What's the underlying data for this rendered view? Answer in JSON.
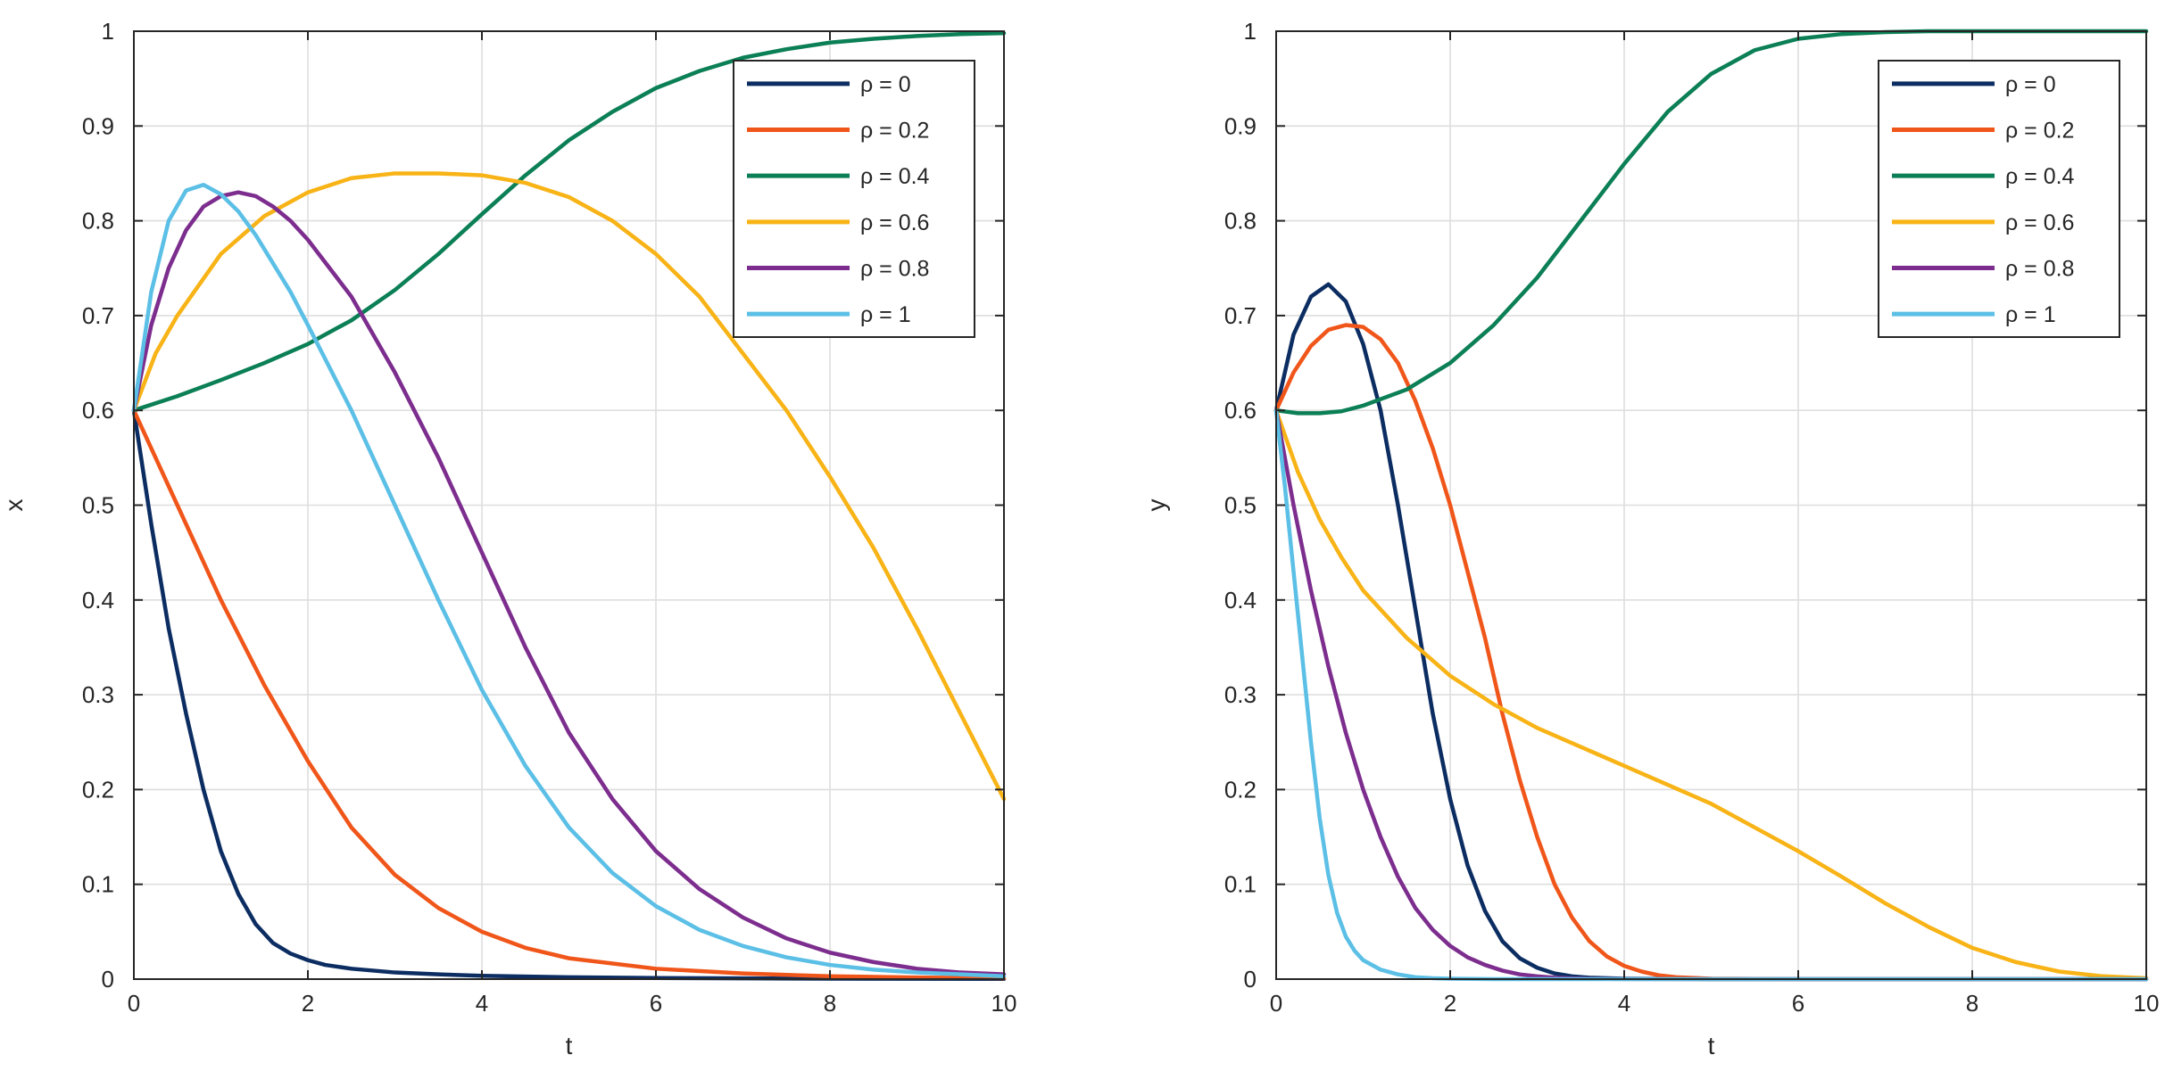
{
  "chart_data": [
    {
      "type": "line",
      "xlabel": "t",
      "ylabel": "x",
      "xlim": [
        0,
        10
      ],
      "ylim": [
        0,
        1
      ],
      "xticks": [
        "0",
        "2",
        "4",
        "6",
        "8",
        "10"
      ],
      "yticks": [
        "0",
        "0.1",
        "0.2",
        "0.3",
        "0.4",
        "0.5",
        "0.6",
        "0.7",
        "0.8",
        "0.9",
        "1"
      ],
      "grid": true,
      "legend_position": "top-right",
      "series": [
        {
          "name": "ρ = 0",
          "color": "#0c2d62",
          "x": [
            0,
            0.2,
            0.4,
            0.6,
            0.8,
            1.0,
            1.2,
            1.4,
            1.6,
            1.8,
            2.0,
            2.2,
            2.5,
            3,
            3.5,
            4,
            5,
            6,
            7,
            8,
            9,
            10
          ],
          "y": [
            0.6,
            0.48,
            0.37,
            0.28,
            0.2,
            0.135,
            0.09,
            0.058,
            0.038,
            0.027,
            0.02,
            0.015,
            0.011,
            0.007,
            0.005,
            0.0035,
            0.002,
            0.0012,
            0.0008,
            0.0005,
            0.0003,
            0.0002
          ]
        },
        {
          "name": "ρ = 0.2",
          "color": "#f0561a",
          "x": [
            0,
            0.5,
            1,
            1.5,
            2,
            2.5,
            3,
            3.5,
            4,
            4.5,
            5,
            6,
            7,
            8,
            9,
            10
          ],
          "y": [
            0.6,
            0.5,
            0.4,
            0.31,
            0.23,
            0.16,
            0.11,
            0.075,
            0.05,
            0.033,
            0.022,
            0.011,
            0.006,
            0.003,
            0.0018,
            0.001
          ]
        },
        {
          "name": "ρ = 0.4",
          "color": "#0b7f55",
          "x": [
            0,
            0.5,
            1,
            1.5,
            2,
            2.5,
            3,
            3.5,
            4,
            4.5,
            5,
            5.5,
            6,
            6.5,
            7,
            7.5,
            8,
            8.5,
            9,
            9.5,
            10
          ],
          "y": [
            0.6,
            0.615,
            0.632,
            0.65,
            0.67,
            0.695,
            0.727,
            0.765,
            0.807,
            0.848,
            0.885,
            0.915,
            0.94,
            0.958,
            0.972,
            0.981,
            0.988,
            0.992,
            0.995,
            0.997,
            0.998
          ]
        },
        {
          "name": "ρ = 0.6",
          "color": "#f8b316",
          "x": [
            0,
            0.25,
            0.5,
            1,
            1.5,
            2,
            2.5,
            3,
            3.5,
            4,
            4.5,
            5,
            5.5,
            6,
            6.5,
            7,
            7.5,
            8,
            8.5,
            9,
            9.5,
            10
          ],
          "y": [
            0.6,
            0.66,
            0.7,
            0.765,
            0.805,
            0.83,
            0.845,
            0.85,
            0.85,
            0.848,
            0.84,
            0.825,
            0.8,
            0.765,
            0.72,
            0.66,
            0.6,
            0.53,
            0.455,
            0.37,
            0.28,
            0.19
          ]
        },
        {
          "name": "ρ = 0.8",
          "color": "#7c2d8e",
          "x": [
            0,
            0.2,
            0.4,
            0.6,
            0.8,
            1.0,
            1.2,
            1.4,
            1.6,
            1.8,
            2.0,
            2.5,
            3,
            3.5,
            4,
            4.5,
            5,
            5.5,
            6,
            6.5,
            7,
            7.5,
            8,
            8.5,
            9,
            9.5,
            10
          ],
          "y": [
            0.6,
            0.69,
            0.75,
            0.79,
            0.815,
            0.826,
            0.83,
            0.826,
            0.815,
            0.8,
            0.78,
            0.72,
            0.64,
            0.55,
            0.45,
            0.35,
            0.26,
            0.19,
            0.135,
            0.095,
            0.065,
            0.043,
            0.028,
            0.018,
            0.011,
            0.007,
            0.005
          ]
        },
        {
          "name": "ρ = 1",
          "color": "#5bbfe6",
          "x": [
            0,
            0.2,
            0.4,
            0.6,
            0.8,
            1.0,
            1.2,
            1.4,
            1.6,
            1.8,
            2.0,
            2.5,
            3,
            3.5,
            4,
            4.5,
            5,
            5.5,
            6,
            6.5,
            7,
            7.5,
            8,
            8.5,
            9,
            9.5,
            10
          ],
          "y": [
            0.6,
            0.725,
            0.8,
            0.832,
            0.838,
            0.828,
            0.81,
            0.785,
            0.755,
            0.725,
            0.69,
            0.6,
            0.5,
            0.4,
            0.305,
            0.225,
            0.16,
            0.112,
            0.077,
            0.052,
            0.035,
            0.023,
            0.015,
            0.01,
            0.007,
            0.005,
            0.003
          ]
        }
      ]
    },
    {
      "type": "line",
      "xlabel": "t",
      "ylabel": "y",
      "xlim": [
        0,
        10
      ],
      "ylim": [
        0,
        1
      ],
      "xticks": [
        "0",
        "2",
        "4",
        "6",
        "8",
        "10"
      ],
      "yticks": [
        "0",
        "0.1",
        "0.2",
        "0.3",
        "0.4",
        "0.5",
        "0.6",
        "0.7",
        "0.8",
        "0.9",
        "1"
      ],
      "grid": true,
      "legend_position": "top-right",
      "series": [
        {
          "name": "ρ = 0",
          "color": "#0c2d62",
          "x": [
            0,
            0.2,
            0.4,
            0.6,
            0.8,
            1.0,
            1.2,
            1.4,
            1.6,
            1.8,
            2.0,
            2.2,
            2.4,
            2.6,
            2.8,
            3.0,
            3.2,
            3.4,
            3.6,
            4,
            5,
            10
          ],
          "y": [
            0.6,
            0.68,
            0.72,
            0.733,
            0.715,
            0.67,
            0.6,
            0.5,
            0.39,
            0.28,
            0.19,
            0.12,
            0.072,
            0.04,
            0.022,
            0.012,
            0.006,
            0.003,
            0.0015,
            0.0005,
            0,
            0
          ]
        },
        {
          "name": "ρ = 0.2",
          "color": "#f0561a",
          "x": [
            0,
            0.2,
            0.4,
            0.6,
            0.8,
            1.0,
            1.2,
            1.4,
            1.6,
            1.8,
            2.0,
            2.2,
            2.4,
            2.6,
            2.8,
            3.0,
            3.2,
            3.4,
            3.6,
            3.8,
            4.0,
            4.2,
            4.4,
            4.6,
            5,
            6,
            10
          ],
          "y": [
            0.6,
            0.64,
            0.668,
            0.685,
            0.69,
            0.688,
            0.675,
            0.65,
            0.61,
            0.56,
            0.5,
            0.43,
            0.36,
            0.28,
            0.21,
            0.15,
            0.1,
            0.065,
            0.04,
            0.024,
            0.014,
            0.008,
            0.004,
            0.002,
            0.0005,
            0,
            0
          ]
        },
        {
          "name": "ρ = 0.4",
          "color": "#0b7f55",
          "x": [
            0,
            0.25,
            0.5,
            0.75,
            1,
            1.5,
            2,
            2.5,
            3,
            3.5,
            4,
            4.5,
            5,
            5.5,
            6,
            6.5,
            7,
            7.5,
            8,
            8.5,
            9,
            10
          ],
          "y": [
            0.6,
            0.597,
            0.597,
            0.599,
            0.605,
            0.622,
            0.65,
            0.69,
            0.74,
            0.8,
            0.86,
            0.915,
            0.955,
            0.98,
            0.992,
            0.997,
            0.999,
            1.0,
            1.0,
            1.0,
            1.0,
            1.0
          ]
        },
        {
          "name": "ρ = 0.6",
          "color": "#f8b316",
          "x": [
            0,
            0.25,
            0.5,
            0.75,
            1,
            1.5,
            2,
            2.5,
            3,
            3.5,
            4,
            4.5,
            5,
            5.5,
            6,
            6.5,
            7,
            7.5,
            8,
            8.5,
            9,
            9.5,
            10
          ],
          "y": [
            0.6,
            0.535,
            0.485,
            0.445,
            0.41,
            0.36,
            0.32,
            0.29,
            0.265,
            0.245,
            0.225,
            0.205,
            0.185,
            0.16,
            0.135,
            0.108,
            0.08,
            0.055,
            0.033,
            0.018,
            0.008,
            0.003,
            0.001
          ]
        },
        {
          "name": "ρ = 0.8",
          "color": "#7c2d8e",
          "x": [
            0,
            0.2,
            0.4,
            0.6,
            0.8,
            1.0,
            1.2,
            1.4,
            1.6,
            1.8,
            2.0,
            2.2,
            2.4,
            2.6,
            2.8,
            3.0,
            3.2,
            3.4,
            3.6,
            4,
            5,
            10
          ],
          "y": [
            0.6,
            0.5,
            0.41,
            0.33,
            0.26,
            0.2,
            0.15,
            0.108,
            0.075,
            0.052,
            0.035,
            0.023,
            0.015,
            0.009,
            0.005,
            0.003,
            0.0015,
            0.0008,
            0.0004,
            0.0001,
            0,
            0
          ]
        },
        {
          "name": "ρ = 1",
          "color": "#5bbfe6",
          "x": [
            0,
            0.1,
            0.2,
            0.3,
            0.4,
            0.5,
            0.6,
            0.7,
            0.8,
            0.9,
            1.0,
            1.2,
            1.4,
            1.6,
            1.8,
            2.0,
            2.5,
            3,
            10
          ],
          "y": [
            0.6,
            0.52,
            0.43,
            0.34,
            0.25,
            0.17,
            0.11,
            0.07,
            0.045,
            0.03,
            0.02,
            0.01,
            0.005,
            0.002,
            0.001,
            0.0005,
            0,
            0,
            0
          ]
        }
      ]
    }
  ]
}
